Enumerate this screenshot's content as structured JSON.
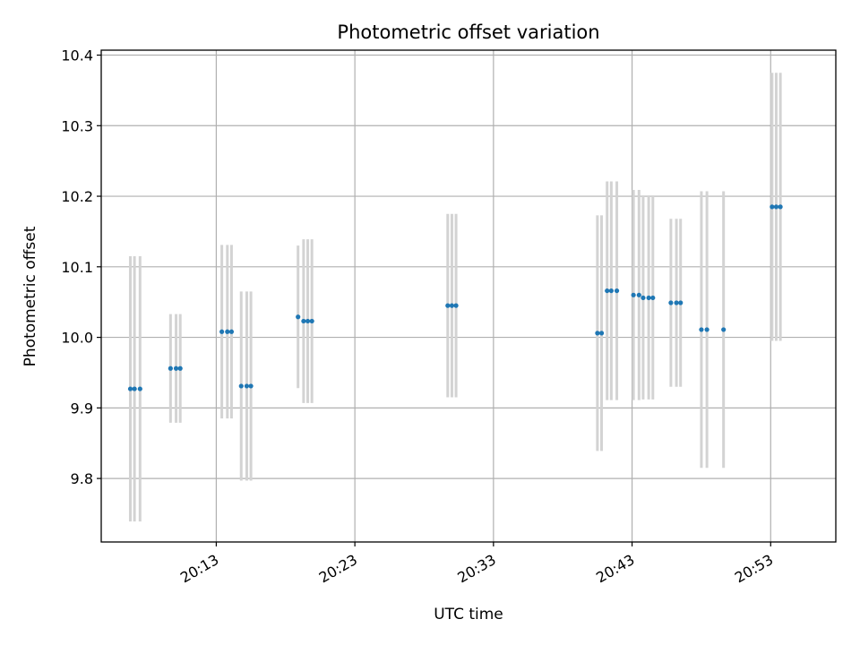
{
  "chart_data": {
    "type": "scatter",
    "title": "Photometric offset variation",
    "xlabel": "UTC time",
    "ylabel": "Photometric offset",
    "x_unit": "minutes",
    "xlim": [
      "20:04.7",
      "20:57.7"
    ],
    "ylim": [
      9.71,
      10.407
    ],
    "x_ticks": [
      "20:13",
      "20:23",
      "20:33",
      "20:43",
      "20:53"
    ],
    "y_ticks": [
      9.8,
      9.9,
      10.0,
      10.1,
      10.2,
      10.3,
      10.4
    ],
    "y_tick_labels": [
      "9.8",
      "9.9",
      "10.0",
      "10.1",
      "10.2",
      "10.3",
      "10.4"
    ],
    "grid": true,
    "colors": {
      "point": "#1f77b4",
      "errorbar": "#d3d3d3"
    },
    "series": [
      {
        "points": [
          {
            "x": "20:06.8",
            "y": 9.927,
            "err": 0.188
          },
          {
            "x": "20:07.1",
            "y": 9.927,
            "err": 0.188
          },
          {
            "x": "20:07.5",
            "y": 9.927,
            "err": 0.188
          },
          {
            "x": "20:09.7",
            "y": 9.956,
            "err": 0.077
          },
          {
            "x": "20:10.1",
            "y": 9.956,
            "err": 0.077
          },
          {
            "x": "20:10.4",
            "y": 9.956,
            "err": 0.077
          },
          {
            "x": "20:13.4",
            "y": 10.008,
            "err": 0.123
          },
          {
            "x": "20:13.8",
            "y": 10.008,
            "err": 0.123
          },
          {
            "x": "20:14.1",
            "y": 10.008,
            "err": 0.123
          },
          {
            "x": "20:14.8",
            "y": 9.931,
            "err": 0.134
          },
          {
            "x": "20:15.2",
            "y": 9.931,
            "err": 0.134
          },
          {
            "x": "20:15.5",
            "y": 9.931,
            "err": 0.134
          },
          {
            "x": "20:18.9",
            "y": 10.029,
            "err": 0.101
          },
          {
            "x": "20:19.3",
            "y": 10.023,
            "err": 0.116
          },
          {
            "x": "20:19.6",
            "y": 10.023,
            "err": 0.116
          },
          {
            "x": "20:19.9",
            "y": 10.023,
            "err": 0.116
          },
          {
            "x": "20:29.7",
            "y": 10.045,
            "err": 0.13
          },
          {
            "x": "20:30.0",
            "y": 10.045,
            "err": 0.13
          },
          {
            "x": "20:30.3",
            "y": 10.045,
            "err": 0.13
          },
          {
            "x": "20:40.5",
            "y": 10.006,
            "err": 0.167
          },
          {
            "x": "20:40.8",
            "y": 10.006,
            "err": 0.167
          },
          {
            "x": "20:41.2",
            "y": 10.066,
            "err": 0.155
          },
          {
            "x": "20:41.5",
            "y": 10.066,
            "err": 0.155
          },
          {
            "x": "20:41.9",
            "y": 10.066,
            "err": 0.155
          },
          {
            "x": "20:43.1",
            "y": 10.06,
            "err": 0.149
          },
          {
            "x": "20:43.5",
            "y": 10.06,
            "err": 0.149
          },
          {
            "x": "20:43.8",
            "y": 10.056,
            "err": 0.144
          },
          {
            "x": "20:44.2",
            "y": 10.056,
            "err": 0.144
          },
          {
            "x": "20:44.5",
            "y": 10.056,
            "err": 0.144
          },
          {
            "x": "20:45.8",
            "y": 10.049,
            "err": 0.119
          },
          {
            "x": "20:46.2",
            "y": 10.049,
            "err": 0.119
          },
          {
            "x": "20:46.5",
            "y": 10.049,
            "err": 0.119
          },
          {
            "x": "20:48.0",
            "y": 10.011,
            "err": 0.196
          },
          {
            "x": "20:48.4",
            "y": 10.011,
            "err": 0.196
          },
          {
            "x": "20:49.6",
            "y": 10.011,
            "err": 0.196
          },
          {
            "x": "20:53.1",
            "y": 10.185,
            "err": 0.19
          },
          {
            "x": "20:53.4",
            "y": 10.185,
            "err": 0.19
          },
          {
            "x": "20:53.7",
            "y": 10.185,
            "err": 0.19
          }
        ]
      }
    ]
  }
}
